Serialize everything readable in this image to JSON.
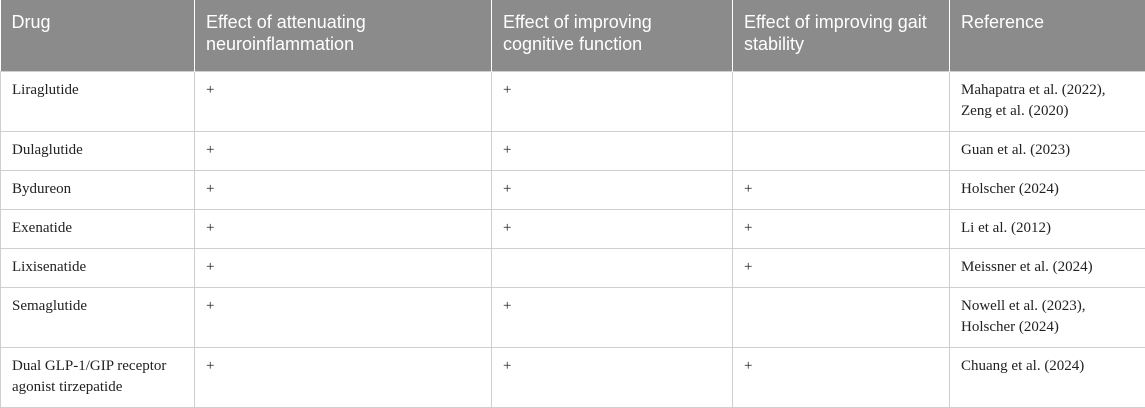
{
  "table": {
    "headers": [
      "Drug",
      "Effect of attenuating neuroinflammation",
      "Effect of improving cognitive function",
      "Effect of improving gait stability",
      "Reference"
    ],
    "rows": [
      {
        "drug": "Liraglutide",
        "neuro": "+",
        "cognitive": "+",
        "gait": "",
        "reference": "Mahapatra et al. (2022), Zeng et al. (2020)"
      },
      {
        "drug": "Dulaglutide",
        "neuro": "+",
        "cognitive": "+",
        "gait": "",
        "reference": "Guan et al. (2023)"
      },
      {
        "drug": "Bydureon",
        "neuro": "+",
        "cognitive": "+",
        "gait": "+",
        "reference": "Holscher (2024)"
      },
      {
        "drug": "Exenatide",
        "neuro": "+",
        "cognitive": "+",
        "gait": "+",
        "reference": "Li et al. (2012)"
      },
      {
        "drug": "Lixisenatide",
        "neuro": "+",
        "cognitive": "",
        "gait": "+",
        "reference": "Meissner et al. (2024)"
      },
      {
        "drug": "Semaglutide",
        "neuro": "+",
        "cognitive": "+",
        "gait": "",
        "reference": "Nowell et al. (2023), Holscher (2024)"
      },
      {
        "drug": "Dual GLP-1/GIP receptor agonist tirzepatide",
        "neuro": "+",
        "cognitive": "+",
        "gait": "+",
        "reference": "Chuang et al. (2024)"
      }
    ]
  }
}
